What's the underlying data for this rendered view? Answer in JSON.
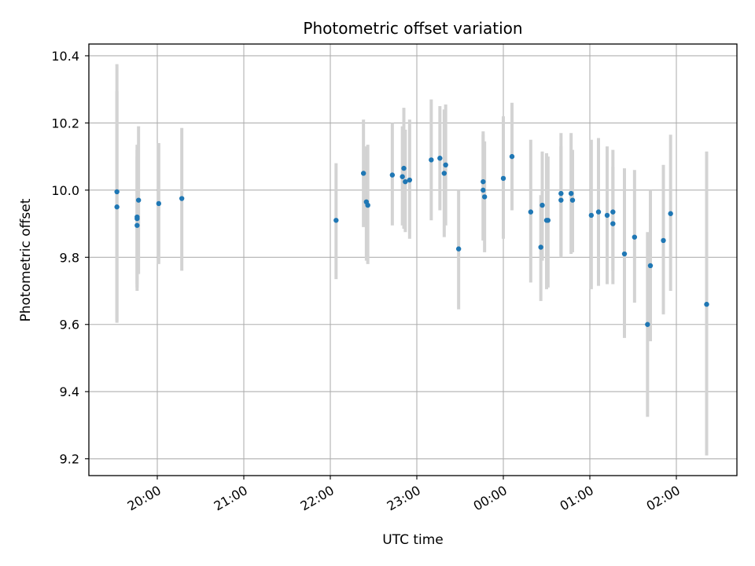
{
  "chart_data": {
    "type": "scatter",
    "title": "Photometric offset variation",
    "xlabel": "UTC time",
    "ylabel": "Photometric offset",
    "x_axis": {
      "ticks": [
        {
          "value": "19:59",
          "label": "20:00"
        },
        {
          "value": "20:59",
          "label": "21:00"
        },
        {
          "value": "21:59",
          "label": "22:00"
        },
        {
          "value": "22:59",
          "label": "23:00"
        },
        {
          "value": "23:59",
          "label": "00:00"
        },
        {
          "value": "00:59+1",
          "label": "01:00"
        },
        {
          "value": "01:59+1",
          "label": "02:00"
        }
      ]
    },
    "y_axis": {
      "ylim": [
        9.15,
        10.435
      ],
      "ticks": [
        "9.2",
        "9.4",
        "9.6",
        "9.8",
        "10.0",
        "10.2",
        "10.4"
      ],
      "tick_values": [
        9.2,
        9.4,
        9.6,
        9.8,
        10.0,
        10.2,
        10.4
      ]
    },
    "grid": true,
    "colors": {
      "marker": "#1f77b4",
      "errorbar": "#d3d3d3",
      "grid": "#b0b0b0",
      "axes": "#000000"
    },
    "series": [
      {
        "points": [
          {
            "t": "19:31",
            "y": 9.995,
            "lo": 9.605,
            "hi": 10.375
          },
          {
            "t": "19:31",
            "y": 9.95,
            "lo": 9.61,
            "hi": 10.295
          },
          {
            "t": "19:45",
            "y": 9.92,
            "lo": 9.7,
            "hi": 10.135
          },
          {
            "t": "19:45",
            "y": 9.915,
            "lo": 9.71,
            "hi": 10.12
          },
          {
            "t": "19:45",
            "y": 9.895,
            "lo": 9.72,
            "hi": 10.1
          },
          {
            "t": "19:46",
            "y": 9.97,
            "lo": 9.75,
            "hi": 10.19
          },
          {
            "t": "20:00",
            "y": 9.96,
            "lo": 9.78,
            "hi": 10.14
          },
          {
            "t": "20:16",
            "y": 9.975,
            "lo": 9.76,
            "hi": 10.185
          },
          {
            "t": "22:03",
            "y": 9.91,
            "lo": 9.735,
            "hi": 10.08
          },
          {
            "t": "22:22",
            "y": 10.05,
            "lo": 9.89,
            "hi": 10.21
          },
          {
            "t": "22:24",
            "y": 9.965,
            "lo": 9.79,
            "hi": 10.13
          },
          {
            "t": "22:25",
            "y": 9.955,
            "lo": 9.78,
            "hi": 10.135
          },
          {
            "t": "22:42",
            "y": 10.045,
            "lo": 9.895,
            "hi": 10.2
          },
          {
            "t": "22:49",
            "y": 10.04,
            "lo": 9.895,
            "hi": 10.19
          },
          {
            "t": "22:50",
            "y": 10.065,
            "lo": 9.885,
            "hi": 10.245
          },
          {
            "t": "22:51",
            "y": 10.025,
            "lo": 9.875,
            "hi": 10.18
          },
          {
            "t": "22:54",
            "y": 10.03,
            "lo": 9.855,
            "hi": 10.21
          },
          {
            "t": "23:09",
            "y": 10.09,
            "lo": 9.91,
            "hi": 10.27
          },
          {
            "t": "23:15",
            "y": 10.095,
            "lo": 9.94,
            "hi": 10.25
          },
          {
            "t": "23:18",
            "y": 10.05,
            "lo": 9.86,
            "hi": 10.24
          },
          {
            "t": "23:19",
            "y": 10.075,
            "lo": 9.895,
            "hi": 10.255
          },
          {
            "t": "23:28",
            "y": 9.825,
            "lo": 9.645,
            "hi": 10.0
          },
          {
            "t": "23:45",
            "y": 10.025,
            "lo": 9.85,
            "hi": 10.175
          },
          {
            "t": "23:45",
            "y": 10.0,
            "lo": 9.85,
            "hi": 10.165
          },
          {
            "t": "23:46",
            "y": 9.98,
            "lo": 9.815,
            "hi": 10.145
          },
          {
            "t": "23:59",
            "y": 10.035,
            "lo": 9.855,
            "hi": 10.22
          },
          {
            "t": "00:05+1",
            "y": 10.1,
            "lo": 9.94,
            "hi": 10.26
          },
          {
            "t": "00:18+1",
            "y": 9.935,
            "lo": 9.725,
            "hi": 10.15
          },
          {
            "t": "00:25+1",
            "y": 9.83,
            "lo": 9.67,
            "hi": 9.985
          },
          {
            "t": "00:26+1",
            "y": 9.955,
            "lo": 9.79,
            "hi": 10.115
          },
          {
            "t": "00:29+1",
            "y": 9.91,
            "lo": 9.705,
            "hi": 10.11
          },
          {
            "t": "00:30+1",
            "y": 9.91,
            "lo": 9.71,
            "hi": 10.1
          },
          {
            "t": "00:39+1",
            "y": 9.99,
            "lo": 9.8,
            "hi": 10.17
          },
          {
            "t": "00:39+1",
            "y": 9.97,
            "lo": 9.805,
            "hi": 10.13
          },
          {
            "t": "00:46+1",
            "y": 9.99,
            "lo": 9.81,
            "hi": 10.17
          },
          {
            "t": "00:47+1",
            "y": 9.97,
            "lo": 9.815,
            "hi": 10.12
          },
          {
            "t": "01:00+1",
            "y": 9.925,
            "lo": 9.705,
            "hi": 10.15
          },
          {
            "t": "01:05+1",
            "y": 9.935,
            "lo": 9.715,
            "hi": 10.155
          },
          {
            "t": "01:11+1",
            "y": 9.925,
            "lo": 9.72,
            "hi": 10.13
          },
          {
            "t": "01:15+1",
            "y": 9.935,
            "lo": 9.76,
            "hi": 10.12
          },
          {
            "t": "01:15+1",
            "y": 9.9,
            "lo": 9.72,
            "hi": 10.07
          },
          {
            "t": "01:23+1",
            "y": 9.81,
            "lo": 9.56,
            "hi": 10.065
          },
          {
            "t": "01:30+1",
            "y": 9.86,
            "lo": 9.665,
            "hi": 10.06
          },
          {
            "t": "01:39+1",
            "y": 9.6,
            "lo": 9.325,
            "hi": 9.875
          },
          {
            "t": "01:41+1",
            "y": 9.775,
            "lo": 9.55,
            "hi": 10.0
          },
          {
            "t": "01:50+1",
            "y": 9.85,
            "lo": 9.63,
            "hi": 10.075
          },
          {
            "t": "01:55+1",
            "y": 9.93,
            "lo": 9.7,
            "hi": 10.165
          },
          {
            "t": "02:20+1",
            "y": 9.66,
            "lo": 9.21,
            "hi": 10.115
          }
        ]
      }
    ]
  }
}
